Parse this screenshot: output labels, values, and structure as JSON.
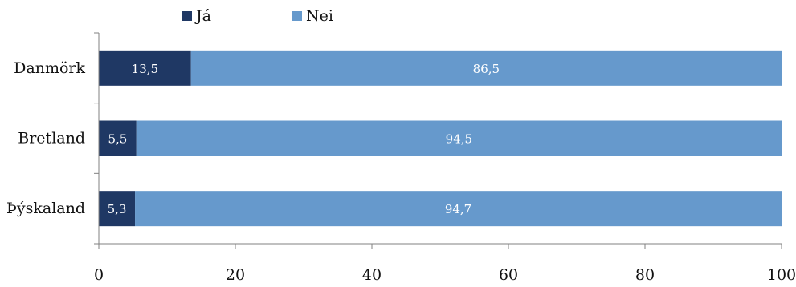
{
  "chart_data": {
    "type": "bar",
    "orientation": "horizontal",
    "stacked": true,
    "categories": [
      "Danmörk",
      "Bretland",
      "Þýskaland"
    ],
    "series": [
      {
        "name": "Já",
        "values": [
          13.5,
          5.5,
          5.3
        ],
        "labels": [
          "13,5",
          "5,5",
          "5,3"
        ],
        "color": "#1f3864"
      },
      {
        "name": "Nei",
        "values": [
          86.5,
          94.5,
          94.7
        ],
        "labels": [
          "86,5",
          "94,5",
          "94,7"
        ],
        "color": "#6699cc"
      }
    ],
    "xlim": [
      0,
      100
    ],
    "xticks": [
      0,
      20,
      40,
      60,
      80,
      100
    ],
    "xtick_labels": [
      "0",
      "20",
      "40",
      "60",
      "80",
      "100"
    ],
    "legend_position": "top",
    "grid": false,
    "title": "",
    "xlabel": "",
    "ylabel": ""
  }
}
